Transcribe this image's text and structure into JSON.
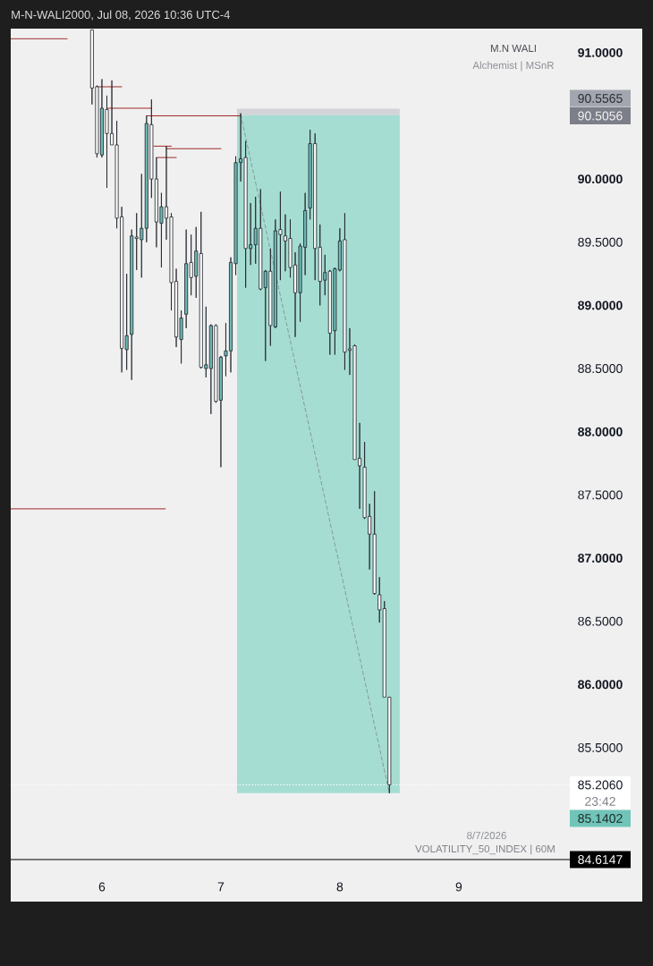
{
  "chart_data": {
    "type": "candlestick",
    "title": "M-N-WALI2000, Jul 08, 2026 10:36 UTC-4",
    "annotations": [
      "M.N WALI",
      "Alchemist | MSnR",
      "90.5565",
      "90.5056",
      "23:42",
      "85.1402",
      "8/7/2026",
      "VOLATILITY_50_INDEX | 60M",
      "84.6147"
    ],
    "xlim": [
      "2026-07-05T05:36",
      "2026-07-09T22:24"
    ],
    "ylim": [
      84.6147,
      91.19
    ],
    "xticks": [
      {
        "value": "2026-07-06",
        "label": "6"
      },
      {
        "value": "2026-07-07",
        "label": "7"
      },
      {
        "value": "2026-07-08",
        "label": "8"
      },
      {
        "value": "2026-07-09",
        "label": "9"
      }
    ],
    "yticks": [
      {
        "value": 85.5,
        "label": "85.5000"
      },
      {
        "value": 86,
        "label": "86.0000"
      },
      {
        "value": 86.5,
        "label": "86.5000"
      },
      {
        "value": 87,
        "label": "87.0000"
      },
      {
        "value": 87.5,
        "label": "87.5000"
      },
      {
        "value": 88,
        "label": "88.0000"
      },
      {
        "value": 88.5,
        "label": "88.5000"
      },
      {
        "value": 89,
        "label": "89.0000"
      },
      {
        "value": 89.5,
        "label": "89.5000"
      },
      {
        "value": 90,
        "label": "90.0000"
      },
      {
        "value": 91,
        "label": "91.0000"
      }
    ],
    "x": [
      "2026-07-05T22:00",
      "2026-07-05T23:00",
      "2026-07-06T00:00",
      "2026-07-06T01:00",
      "2026-07-06T02:00",
      "2026-07-06T03:00",
      "2026-07-06T04:00",
      "2026-07-06T05:00",
      "2026-07-06T06:00",
      "2026-07-06T07:00",
      "2026-07-06T08:00",
      "2026-07-06T09:00",
      "2026-07-06T10:00",
      "2026-07-06T11:00",
      "2026-07-06T12:00",
      "2026-07-06T13:00",
      "2026-07-06T14:00",
      "2026-07-06T15:00",
      "2026-07-06T16:00",
      "2026-07-06T17:00",
      "2026-07-06T18:00",
      "2026-07-06T19:00",
      "2026-07-06T20:00",
      "2026-07-06T21:00",
      "2026-07-06T22:00",
      "2026-07-06T23:00",
      "2026-07-07T00:00",
      "2026-07-07T01:00",
      "2026-07-07T02:00",
      "2026-07-07T03:00",
      "2026-07-07T04:00",
      "2026-07-07T05:00",
      "2026-07-07T06:00",
      "2026-07-07T07:00",
      "2026-07-07T08:00",
      "2026-07-07T09:00",
      "2026-07-07T10:00",
      "2026-07-07T11:00",
      "2026-07-07T12:00",
      "2026-07-07T13:00",
      "2026-07-07T14:00",
      "2026-07-07T15:00",
      "2026-07-07T16:00",
      "2026-07-07T17:00",
      "2026-07-07T18:00",
      "2026-07-07T19:00",
      "2026-07-07T20:00",
      "2026-07-07T21:00",
      "2026-07-07T22:00",
      "2026-07-07T23:00",
      "2026-07-08T00:00",
      "2026-07-08T01:00",
      "2026-07-08T02:00",
      "2026-07-08T03:00",
      "2026-07-08T04:00",
      "2026-07-08T05:00",
      "2026-07-08T06:00",
      "2026-07-08T07:00",
      "2026-07-08T08:00",
      "2026-07-08T09:00",
      "2026-07-08T10:00"
    ],
    "ohlc": [
      [
        91.18,
        91.18,
        90.59,
        90.72
      ],
      [
        90.73,
        90.74,
        90.17,
        90.2
      ],
      [
        90.19,
        90.79,
        90.17,
        90.56
      ],
      [
        90.55,
        90.66,
        89.93,
        90.36
      ],
      [
        90.36,
        90.78,
        90.27,
        90.27
      ],
      [
        90.27,
        90.46,
        89.61,
        89.69
      ],
      [
        89.7,
        89.78,
        88.47,
        88.66
      ],
      [
        88.65,
        89.25,
        88.49,
        88.76
      ],
      [
        88.77,
        89.6,
        88.41,
        89.55
      ],
      [
        89.54,
        89.73,
        89.28,
        89.53
      ],
      [
        89.52,
        90.04,
        89.22,
        89.61
      ],
      [
        89.61,
        90.5,
        89.5,
        90.44
      ],
      [
        90.43,
        90.63,
        89.85,
        90.0
      ],
      [
        90.0,
        90.17,
        89.46,
        89.66
      ],
      [
        89.65,
        89.89,
        89.3,
        89.78
      ],
      [
        89.78,
        90.26,
        89.52,
        89.69
      ],
      [
        89.7,
        89.73,
        88.96,
        89.18
      ],
      [
        89.19,
        89.29,
        88.67,
        88.75
      ],
      [
        88.73,
        88.96,
        88.54,
        88.9
      ],
      [
        88.93,
        89.6,
        88.82,
        89.33
      ],
      [
        89.34,
        89.56,
        89.08,
        89.22
      ],
      [
        89.23,
        89.62,
        89.06,
        89.43
      ],
      [
        89.41,
        89.74,
        88.5,
        88.51
      ],
      [
        88.5,
        88.99,
        88.43,
        88.53
      ],
      [
        88.5,
        88.85,
        88.14,
        88.84
      ],
      [
        88.84,
        88.85,
        88.23,
        88.24
      ],
      [
        88.25,
        88.6,
        87.72,
        88.59
      ],
      [
        88.6,
        88.86,
        88.44,
        88.64
      ],
      [
        88.64,
        89.38,
        88.47,
        89.34
      ],
      [
        89.33,
        90.18,
        89.24,
        90.13
      ],
      [
        90.13,
        90.52,
        89.98,
        90.16
      ],
      [
        90.17,
        90.3,
        89.14,
        89.45
      ],
      [
        89.45,
        89.81,
        89.32,
        89.48
      ],
      [
        89.48,
        89.86,
        89.33,
        89.61
      ],
      [
        89.61,
        89.92,
        89.12,
        89.13
      ],
      [
        89.14,
        89.28,
        88.56,
        89.27
      ],
      [
        89.27,
        89.45,
        88.68,
        88.84
      ],
      [
        88.83,
        89.68,
        88.82,
        89.59
      ],
      [
        89.6,
        89.9,
        89.2,
        89.56
      ],
      [
        89.55,
        89.72,
        89.27,
        89.51
      ],
      [
        89.53,
        89.68,
        89.22,
        89.3
      ],
      [
        89.32,
        89.42,
        88.75,
        89.1
      ],
      [
        89.1,
        89.49,
        88.87,
        89.47
      ],
      [
        89.46,
        89.89,
        89.24,
        89.75
      ],
      [
        89.77,
        90.39,
        89.68,
        90.28
      ],
      [
        90.28,
        90.36,
        89.2,
        89.45
      ],
      [
        89.46,
        89.64,
        89.0,
        89.19
      ],
      [
        89.2,
        89.4,
        89.08,
        89.26
      ],
      [
        89.27,
        89.28,
        88.61,
        88.78
      ],
      [
        88.8,
        89.3,
        88.61,
        89.29
      ],
      [
        89.28,
        89.61,
        89.27,
        89.51
      ],
      [
        89.52,
        89.73,
        88.49,
        88.63
      ],
      [
        88.65,
        88.82,
        88.45,
        88.65
      ],
      [
        88.68,
        88.69,
        87.78,
        87.78
      ],
      [
        87.79,
        88.07,
        87.39,
        87.73
      ],
      [
        87.72,
        87.92,
        87.31,
        87.32
      ],
      [
        87.33,
        87.43,
        86.91,
        87.19
      ],
      [
        87.19,
        87.53,
        86.71,
        86.72
      ],
      [
        86.71,
        86.85,
        86.49,
        86.59
      ],
      [
        86.6,
        86.66,
        85.9,
        85.9
      ],
      [
        85.9,
        85.9,
        85.14,
        85.206
      ]
    ],
    "colors": [
      "#ffffff",
      "#ffffff",
      "#6bbab5",
      "#ffffff",
      "#ffffff",
      "#ffffff",
      "#ffffff",
      "#6bbab5",
      "#6bbab5",
      "#ffffff",
      "#6bbab5",
      "#6bbab5",
      "#ffffff",
      "#ffffff",
      "#6bbab5",
      "#ffffff",
      "#ffffff",
      "#ffffff",
      "#6bbab5",
      "#6bbab5",
      "#ffffff",
      "#6bbab5",
      "#ffffff",
      "#6bbab5",
      "#6bbab5",
      "#ffffff",
      "#6bbab5",
      "#6bbab5",
      "#6bbab5",
      "#6bbab5",
      "#6bbab5",
      "#ffffff",
      "#6bbab5",
      "#6bbab5",
      "#ffffff",
      "#6bbab5",
      "#ffffff",
      "#6bbab5",
      "#ffffff",
      "#ffffff",
      "#ffffff",
      "#ffffff",
      "#6bbab5",
      "#6bbab5",
      "#6bbab5",
      "#ffffff",
      "#ffffff",
      "#6bbab5",
      "#ffffff",
      "#6bbab5",
      "#6bbab5",
      "#ffffff",
      "#ffffff",
      "#ffffff",
      "#ffffff",
      "#ffffff",
      "#ffffff",
      "#ffffff",
      "#ffffff",
      "#ffffff",
      "#ffffff"
    ],
    "series": [
      {
        "type": "line",
        "x": [
          "2026-07-07T03:16",
          "2026-07-08T12:06"
        ],
        "values": [
          null,
          null
        ],
        "lower": [
          90.5056,
          90.5056
        ],
        "upper": [
          90.5565,
          90.5565
        ],
        "color": "#d3d4d9"
      },
      {
        "type": "line",
        "x": [
          "2026-07-07T03:16",
          "2026-07-08T12:06"
        ],
        "values": [
          null,
          null
        ],
        "lower": [
          85.1402,
          85.1402
        ],
        "upper": [
          90.5056,
          90.5056
        ],
        "color": "#a6ddd3"
      },
      {
        "type": "line",
        "x": [
          "2026-07-07T04:00",
          "2026-07-08T10:00"
        ],
        "values": [
          90.51,
          85.14
        ],
        "color": "#7f9c97",
        "line_style": "dashed"
      },
      {
        "type": "line",
        "x": [
          "2026-07-05T05:36",
          "2026-07-05T17:00"
        ],
        "values": [
          91.11,
          91.11
        ],
        "color": "#9e2a2b"
      },
      {
        "type": "line",
        "x": [
          "2026-07-05T23:00",
          "2026-07-06T04:00"
        ],
        "values": [
          90.73,
          90.73
        ],
        "color": "#9e2a2b"
      },
      {
        "type": "line",
        "x": [
          "2026-07-06T01:00",
          "2026-07-06T10:00"
        ],
        "values": [
          90.56,
          90.56
        ],
        "color": "#9e2a2b"
      },
      {
        "type": "line",
        "x": [
          "2026-07-06T09:00",
          "2026-07-07T04:00"
        ],
        "values": [
          90.5,
          90.5
        ],
        "color": "#9e2a2b"
      },
      {
        "type": "line",
        "x": [
          "2026-07-06T10:30",
          "2026-07-06T14:00"
        ],
        "values": [
          90.26,
          90.26
        ],
        "color": "#9e2a2b"
      },
      {
        "type": "line",
        "x": [
          "2026-07-06T13:00",
          "2026-07-07T00:00"
        ],
        "values": [
          90.24,
          90.24
        ],
        "color": "#9e2a2b"
      },
      {
        "type": "line",
        "x": [
          "2026-07-06T11:00",
          "2026-07-06T15:00"
        ],
        "values": [
          90.17,
          90.17
        ],
        "color": "#9e2a2b"
      },
      {
        "type": "line",
        "x": [
          "2026-07-05T05:36",
          "2026-07-06T12:48"
        ],
        "values": [
          87.39,
          87.39
        ],
        "color": "#9e2a2b"
      }
    ],
    "ref_lines": [
      {
        "axis": "y",
        "value": 85.206,
        "label": "85.2060",
        "color": "#ffffff",
        "line_style": "dotted"
      }
    ]
  }
}
